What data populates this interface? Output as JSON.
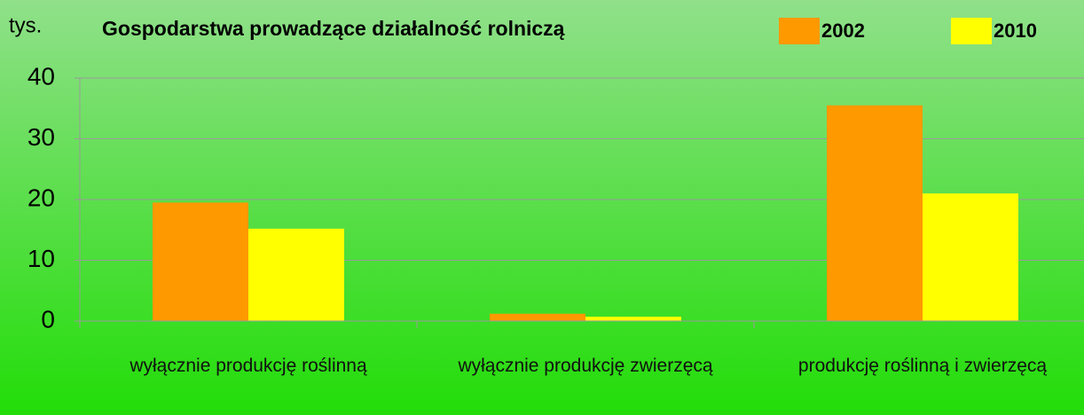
{
  "chart_data": {
    "type": "bar",
    "title": "Gospodarstwa prowadzące działalność rolniczą",
    "y_label": "tys.",
    "categories": [
      "wyłącznie produkcję roślinną",
      "wyłącznie produkcję zwierzęcą",
      "produkcję roślinną i zwierzęcą"
    ],
    "series": [
      {
        "name": "2002",
        "color": "#ff9900",
        "values": [
          19.5,
          1.2,
          35.5
        ]
      },
      {
        "name": "2010",
        "color": "#ffff00",
        "values": [
          15.2,
          0.7,
          21.0
        ]
      }
    ],
    "ylim": [
      0,
      40
    ],
    "yticks": [
      0,
      10,
      20,
      30,
      40
    ],
    "grid": true,
    "legend": "top-right"
  }
}
